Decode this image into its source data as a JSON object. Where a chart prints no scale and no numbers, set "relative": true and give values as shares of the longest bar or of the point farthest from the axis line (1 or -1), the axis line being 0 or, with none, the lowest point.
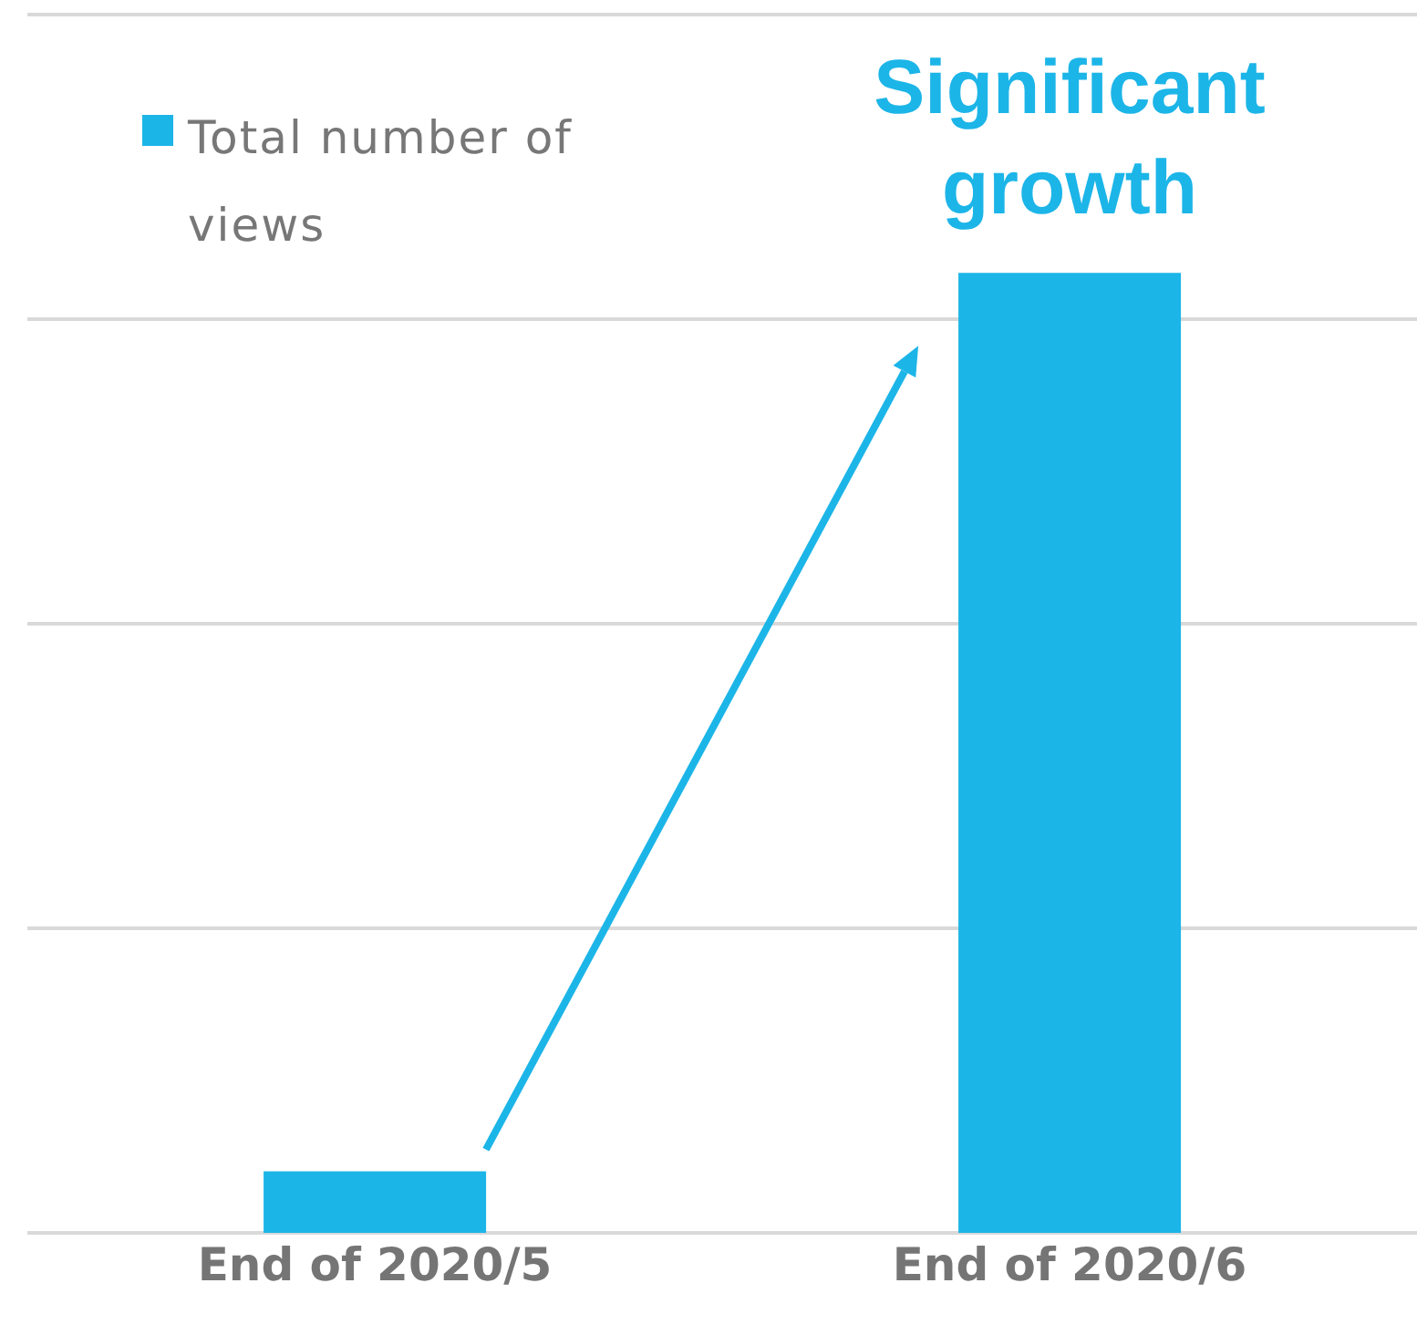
{
  "chart_data": {
    "type": "bar",
    "relative": true,
    "categories": [
      "End of 2020/5",
      "End of 2020/6"
    ],
    "series": [
      {
        "name": "Total number of views",
        "color": "#1cb5e8",
        "values": [
          0.064,
          1
        ]
      }
    ],
    "annotations": [
      "Significant growth"
    ],
    "grid": "y",
    "legend": "top left"
  }
}
